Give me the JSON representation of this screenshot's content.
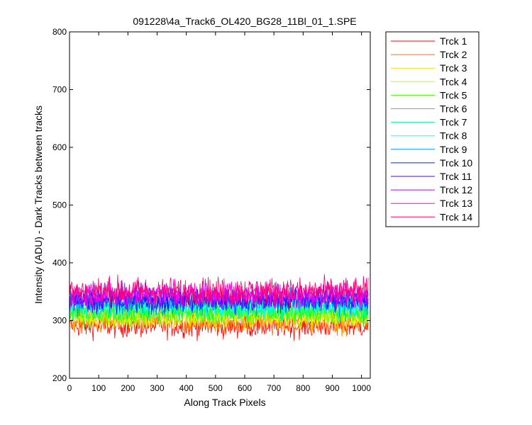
{
  "chart_data": {
    "type": "line",
    "title": "091228\\4a_Track6_OL420_BG28_11Bl_01_1.SPE",
    "xlabel": "Along Track Pixels",
    "ylabel": "Intensity (ADU) - Dark Tracks between tracks",
    "xlim": [
      0,
      1030
    ],
    "ylim": [
      200,
      800
    ],
    "xticks": [
      "0",
      "100",
      "200",
      "300",
      "400",
      "500",
      "600",
      "700",
      "800",
      "900",
      "1000"
    ],
    "yticks": [
      "200",
      "300",
      "400",
      "500",
      "600",
      "700",
      "800"
    ],
    "grid": false,
    "legend_position": "outside-right",
    "x_range": [
      1,
      1024
    ],
    "series": [
      {
        "name": "Trck 1",
        "color": "#ff0000",
        "mean": 290,
        "noise": 10
      },
      {
        "name": "Trck 2",
        "color": "#ff6d00",
        "mean": 297,
        "noise": 10
      },
      {
        "name": "Trck 3",
        "color": "#ffdb00",
        "mean": 303,
        "noise": 10
      },
      {
        "name": "Trck 4",
        "color": "#b6ff00",
        "mean": 308,
        "noise": 10
      },
      {
        "name": "Trck 5",
        "color": "#49ff00",
        "mean": 313,
        "noise": 10
      },
      {
        "name": "Trck 6",
        "color": "#00ff24",
        "mean": 318,
        "noise": 10
      },
      {
        "name": "Trck 7",
        "color": "#00ff92",
        "mean": 322,
        "noise": 10
      },
      {
        "name": "Trck 8",
        "color": "#00ffff",
        "mean": 327,
        "noise": 10
      },
      {
        "name": "Trck 9",
        "color": "#0092ff",
        "mean": 331,
        "noise": 10
      },
      {
        "name": "Trck 10",
        "color": "#0024ff",
        "mean": 335,
        "noise": 10
      },
      {
        "name": "Trck 11",
        "color": "#4900ff",
        "mean": 339,
        "noise": 11
      },
      {
        "name": "Trck 12",
        "color": "#b600ff",
        "mean": 343,
        "noise": 11
      },
      {
        "name": "Trck 13",
        "color": "#ff00db",
        "mean": 347,
        "noise": 11
      },
      {
        "name": "Trck 14",
        "color": "#ff006d",
        "mean": 351,
        "noise": 12
      }
    ]
  }
}
